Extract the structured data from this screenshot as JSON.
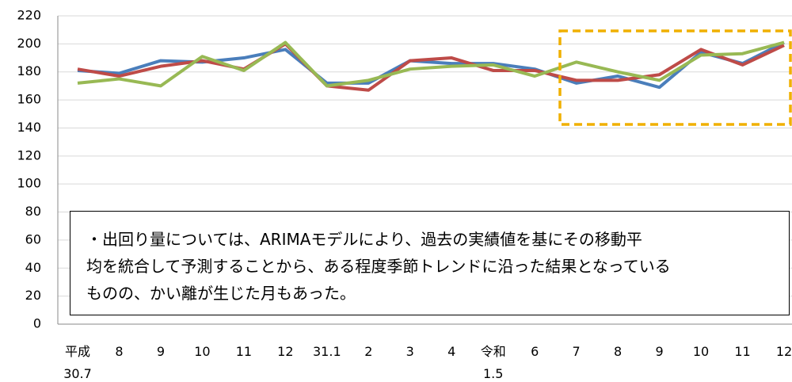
{
  "chart_data": {
    "type": "line",
    "categories": [
      "平成\n30.7",
      "8",
      "9",
      "10",
      "11",
      "12",
      "31.1",
      "2",
      "3",
      "4",
      "令和\n1.5",
      "6",
      "7",
      "8",
      "9",
      "10",
      "11",
      "12"
    ],
    "series": [
      {
        "color": "#4a7ebb",
        "values": [
          181,
          179,
          188,
          187,
          190,
          196,
          172,
          172,
          188,
          186,
          186,
          182,
          172,
          177,
          169,
          194,
          186,
          201
        ]
      },
      {
        "color": "#be4b48",
        "values": [
          182,
          177,
          184,
          188,
          182,
          200,
          170,
          167,
          188,
          190,
          181,
          181,
          174,
          174,
          178,
          196,
          185,
          199
        ]
      },
      {
        "color": "#98b954",
        "values": [
          172,
          175,
          170,
          191,
          181,
          201,
          170,
          174,
          182,
          184,
          185,
          177,
          187,
          180,
          174,
          192,
          193,
          201
        ]
      }
    ],
    "ylim": [
      0,
      220
    ],
    "yticks": [
      0,
      20,
      40,
      60,
      80,
      100,
      120,
      140,
      160,
      180,
      200,
      220
    ],
    "grid": true,
    "annotation": [
      "・出回り量については、ARIMAモデルにより、過去の実績値を基にその移動平",
      "均を統合して予測することから、ある程度季節トレンドに沿った結果となっている",
      "ものの、かい離が生じた月もあった。"
    ]
  }
}
